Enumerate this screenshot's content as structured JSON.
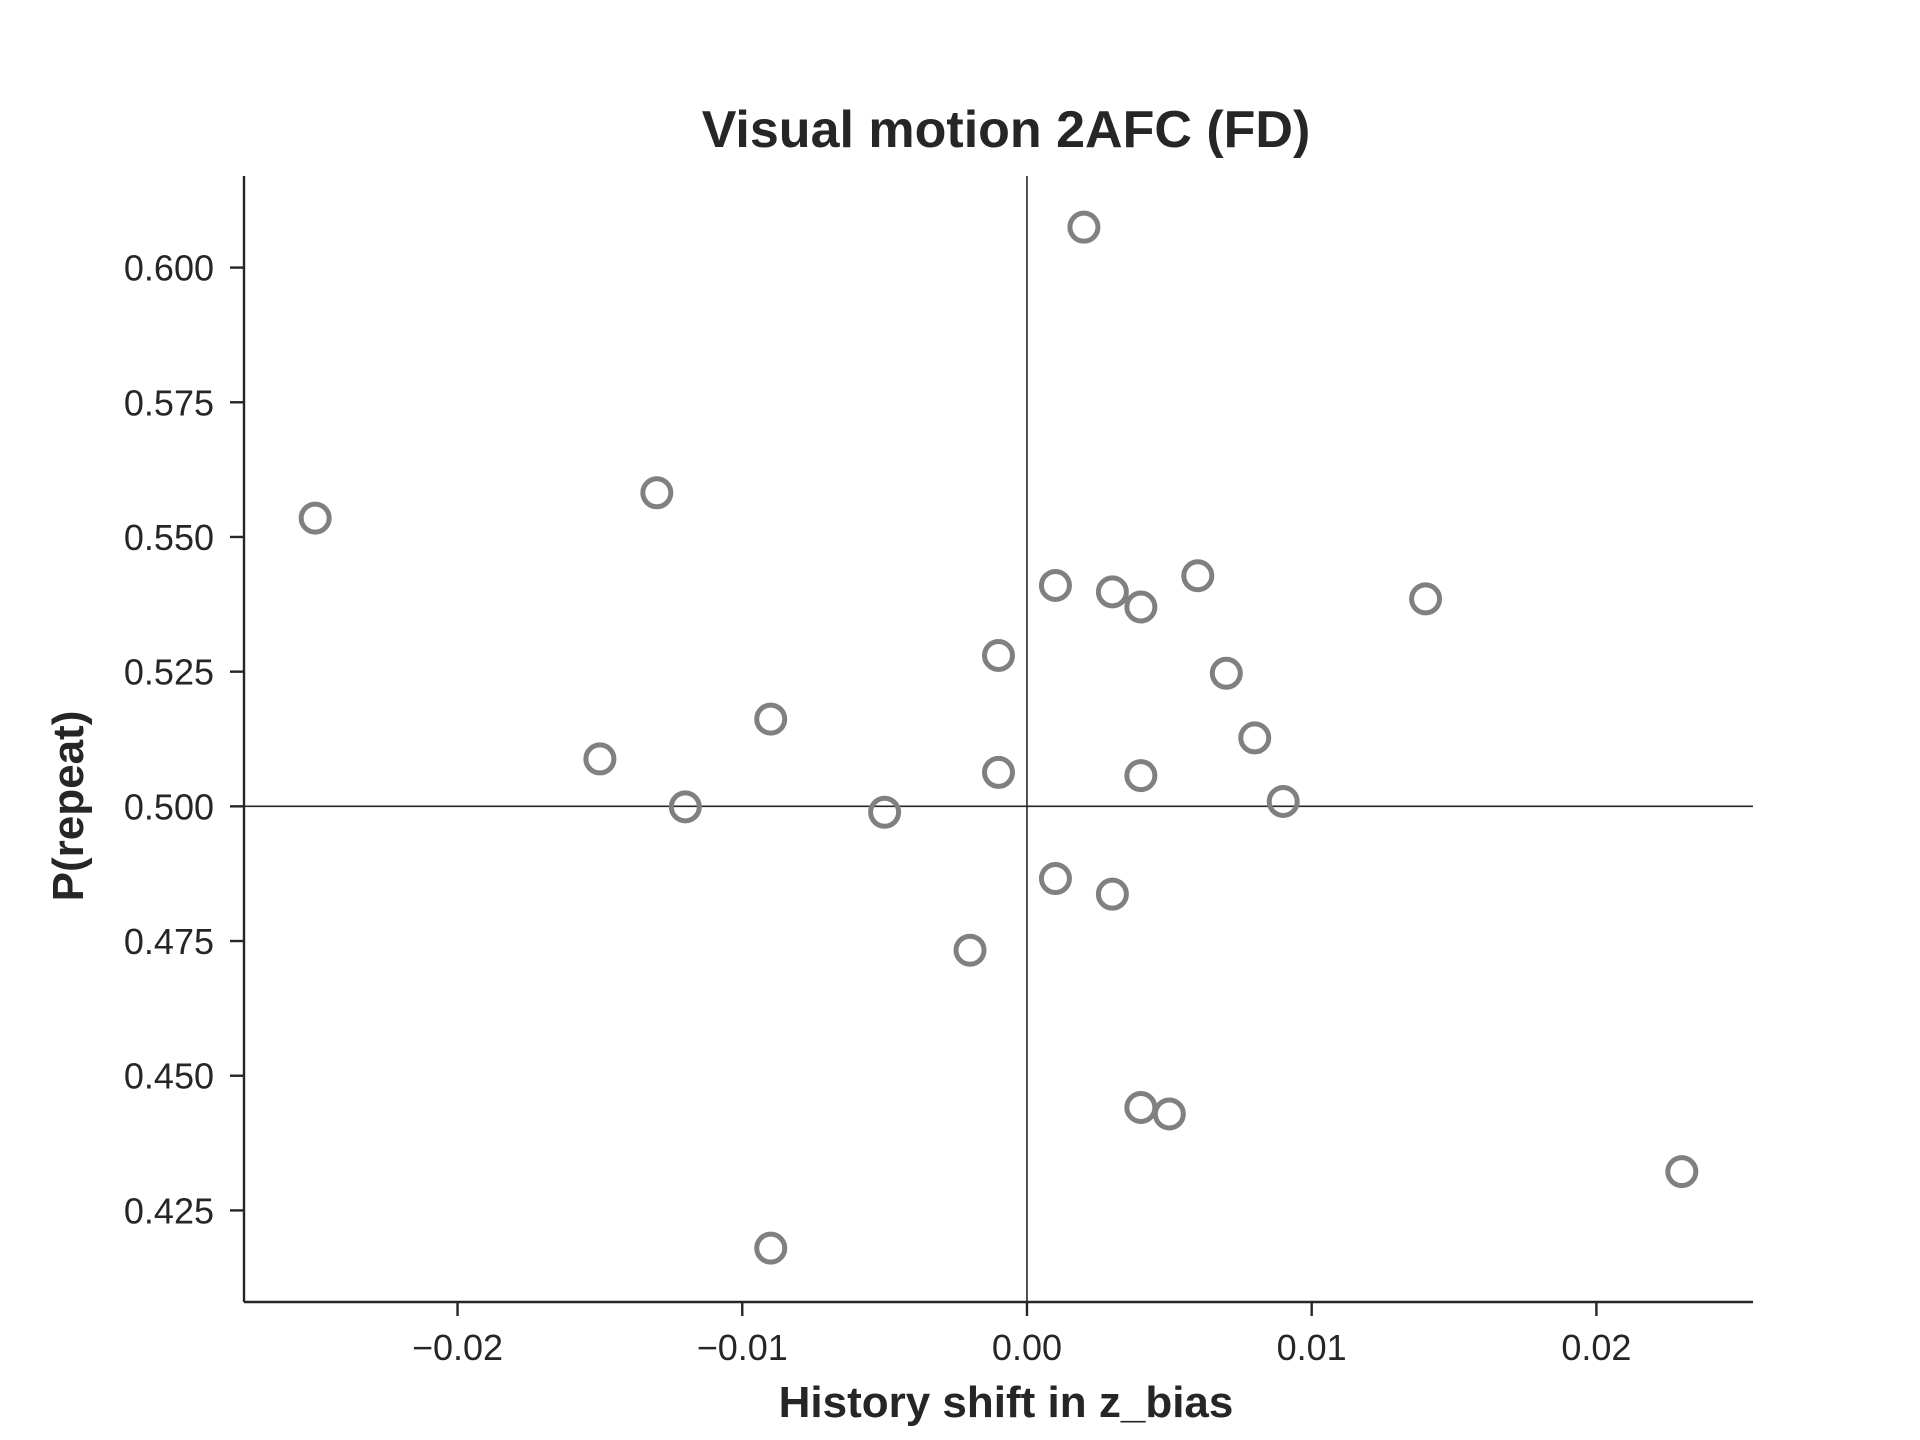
{
  "chart_data": {
    "type": "scatter",
    "title": "Visual motion 2AFC (FD)",
    "xlabel": "History shift in z_bias",
    "ylabel": "P(repeat)",
    "xlim": [
      -0.0275,
      0.0255
    ],
    "ylim": [
      0.408,
      0.617
    ],
    "x_ticks": [
      -0.02,
      -0.01,
      0.0,
      0.01,
      0.02
    ],
    "x_tick_labels": [
      "−0.02",
      "−0.01",
      "0.00",
      "0.01",
      "0.02"
    ],
    "y_ticks": [
      0.425,
      0.45,
      0.475,
      0.5,
      0.525,
      0.55,
      0.575,
      0.6
    ],
    "y_tick_labels": [
      "0.425",
      "0.450",
      "0.475",
      "0.500",
      "0.525",
      "0.550",
      "0.575",
      "0.600"
    ],
    "reference_lines": {
      "x": 0.0,
      "y": 0.5
    },
    "grid": false,
    "marker": "hollow-circle",
    "marker_color": "#808080",
    "series": [
      {
        "points": [
          {
            "x": 0.002,
            "y": 0.6075
          },
          {
            "x": -0.025,
            "y": 0.5535
          },
          {
            "x": -0.013,
            "y": 0.5582
          },
          {
            "x": 0.001,
            "y": 0.541
          },
          {
            "x": 0.003,
            "y": 0.5398
          },
          {
            "x": 0.004,
            "y": 0.537
          },
          {
            "x": 0.006,
            "y": 0.5428
          },
          {
            "x": 0.014,
            "y": 0.5385
          },
          {
            "x": -0.001,
            "y": 0.528
          },
          {
            "x": 0.007,
            "y": 0.5247
          },
          {
            "x": -0.009,
            "y": 0.5162
          },
          {
            "x": -0.015,
            "y": 0.5088
          },
          {
            "x": 0.008,
            "y": 0.5127
          },
          {
            "x": -0.001,
            "y": 0.5063
          },
          {
            "x": 0.004,
            "y": 0.5057
          },
          {
            "x": -0.012,
            "y": 0.4999
          },
          {
            "x": 0.009,
            "y": 0.5009
          },
          {
            "x": -0.005,
            "y": 0.4989
          },
          {
            "x": 0.001,
            "y": 0.4866
          },
          {
            "x": 0.003,
            "y": 0.4837
          },
          {
            "x": -0.002,
            "y": 0.4733
          },
          {
            "x": 0.004,
            "y": 0.4441
          },
          {
            "x": 0.005,
            "y": 0.4429
          },
          {
            "x": 0.023,
            "y": 0.4322
          },
          {
            "x": -0.009,
            "y": 0.418
          }
        ]
      }
    ]
  }
}
